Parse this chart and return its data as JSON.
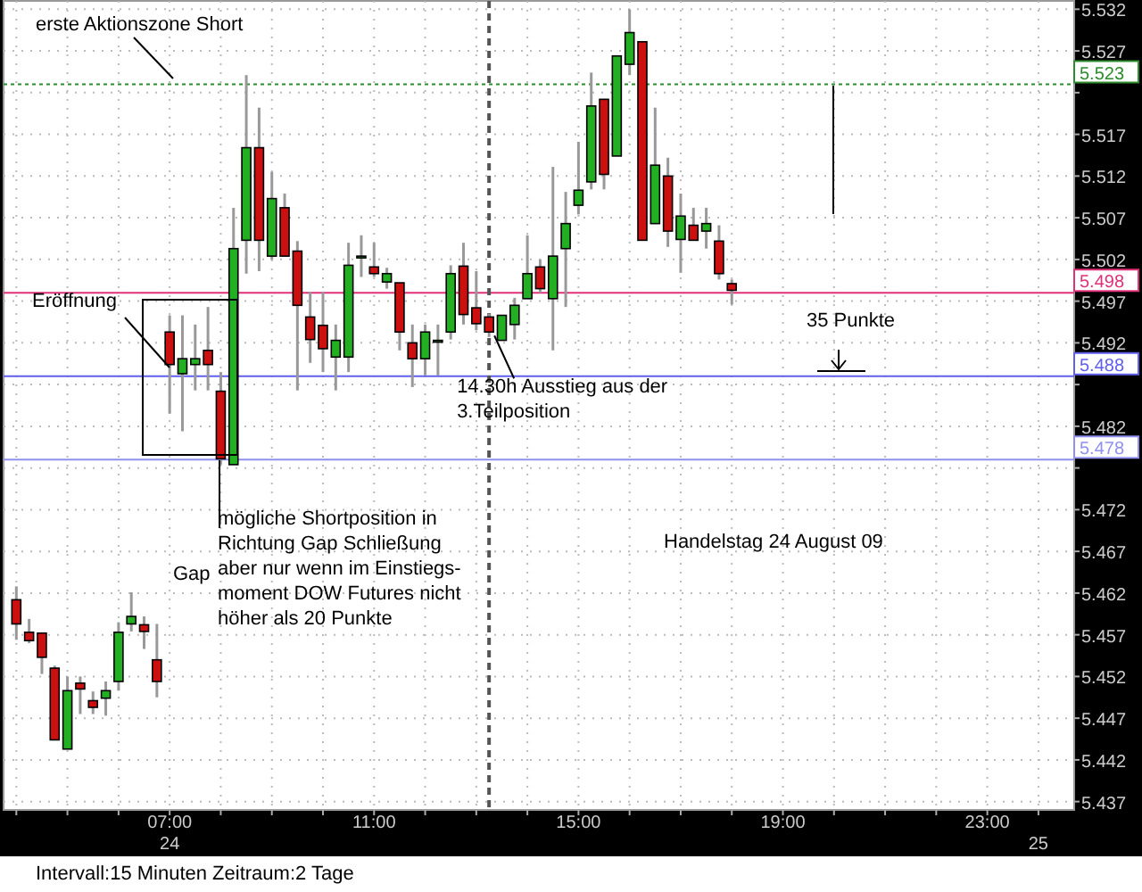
{
  "chart_data": {
    "type": "candlestick",
    "x": [
      4,
      4.25,
      4.5,
      4.75,
      5,
      5.25,
      5.5,
      5.75,
      6,
      6.25,
      6.5,
      6.75,
      7,
      7.25,
      7.5,
      7.75,
      8,
      8.25,
      8.5,
      8.75,
      9,
      9.25,
      9.5,
      9.75,
      10,
      10.25,
      10.5,
      10.75,
      11,
      11.25,
      11.5,
      11.75,
      12,
      12.25,
      12.5,
      12.75,
      13,
      13.25,
      13.5,
      13.75,
      14,
      14.25,
      14.5,
      14.75,
      15,
      15.25,
      15.5,
      15.75,
      16,
      16.25,
      16.5,
      16.75,
      17,
      17.25,
      17.5,
      17.75,
      18
    ],
    "ohlc": [
      [
        5.4612,
        5.4628,
        5.4564,
        5.4583
      ],
      [
        5.4573,
        5.4589,
        5.456,
        5.4563
      ],
      [
        5.4572,
        5.4572,
        5.4523,
        5.4543
      ],
      [
        5.453,
        5.4533,
        5.4444,
        5.4444
      ],
      [
        5.4433,
        5.452,
        5.4433,
        5.4503
      ],
      [
        5.4512,
        5.452,
        5.4475,
        5.4505
      ],
      [
        5.4491,
        5.4502,
        5.4475,
        5.4483
      ],
      [
        5.4494,
        5.4514,
        5.4473,
        5.4503
      ],
      [
        5.4514,
        5.4585,
        5.4503,
        5.4573
      ],
      [
        5.4583,
        5.4621,
        5.4574,
        5.4592
      ],
      [
        5.4582,
        5.4592,
        5.4553,
        5.4574
      ],
      [
        5.454,
        5.4583,
        5.4495,
        5.4514
      ],
      [
        5.4933,
        5.4953,
        5.4835,
        5.4894
      ],
      [
        5.4883,
        5.4953,
        5.4814,
        5.4901
      ],
      [
        5.4894,
        5.4942,
        5.4863,
        5.4901
      ],
      [
        5.4911,
        5.4963,
        5.4863,
        5.4894
      ],
      [
        5.4862,
        5.4885,
        5.4774,
        5.4781
      ],
      [
        5.4774,
        5.5082,
        5.4774,
        5.5033
      ],
      [
        5.5043,
        5.5241,
        5.5003,
        5.5154
      ],
      [
        5.5154,
        5.5202,
        5.5006,
        5.5043
      ],
      [
        5.5024,
        5.5125,
        5.502,
        5.5093
      ],
      [
        5.5082,
        5.5099,
        5.5024,
        5.5024
      ],
      [
        5.503,
        5.5042,
        5.4863,
        5.4965
      ],
      [
        5.4951,
        5.4981,
        5.4896,
        5.4924
      ],
      [
        5.4941,
        5.4981,
        5.4885,
        5.4913
      ],
      [
        5.4903,
        5.4942,
        5.4863,
        5.4923
      ],
      [
        5.4903,
        5.504,
        5.4885,
        5.5013
      ],
      [
        5.5024,
        5.5049,
        5.4999,
        5.5024
      ],
      [
        5.5011,
        5.504,
        5.4999,
        5.5003
      ],
      [
        5.4993,
        5.501,
        5.4985,
        5.5003
      ],
      [
        5.4992,
        5.4992,
        5.4911,
        5.4933
      ],
      [
        5.492,
        5.4942,
        5.4867,
        5.4901
      ],
      [
        5.4901,
        5.4942,
        5.4881,
        5.4933
      ],
      [
        5.4923,
        5.4942,
        5.4881,
        5.4923
      ],
      [
        5.4933,
        5.5013,
        5.4924,
        5.5003
      ],
      [
        5.5012,
        5.504,
        5.4942,
        5.4954
      ],
      [
        5.4962,
        5.5006,
        5.4935,
        5.4943
      ],
      [
        5.4951,
        5.4955,
        5.4927,
        5.4933
      ],
      [
        5.4923,
        5.4953,
        5.4923,
        5.4953
      ],
      [
        5.4942,
        5.4974,
        5.4924,
        5.4965
      ],
      [
        5.4973,
        5.5049,
        5.4973,
        5.5003
      ],
      [
        5.5011,
        5.502,
        5.498,
        5.4985
      ],
      [
        5.4973,
        5.5131,
        5.4911,
        5.5024
      ],
      [
        5.5033,
        5.5101,
        5.4963,
        5.5063
      ],
      [
        5.5085,
        5.5161,
        5.5074,
        5.5103
      ],
      [
        5.5113,
        5.5244,
        5.5104,
        5.5204
      ],
      [
        5.5212,
        5.5212,
        5.5104,
        5.5122
      ],
      [
        5.5144,
        5.5264,
        5.5144,
        5.5264
      ],
      [
        5.5254,
        5.532,
        5.5241,
        5.5292
      ],
      [
        5.5281,
        5.5281,
        5.5043,
        5.5043
      ],
      [
        5.5063,
        5.5202,
        5.5063,
        5.5133
      ],
      [
        5.512,
        5.5142,
        5.5035,
        5.5054
      ],
      [
        5.5044,
        5.5099,
        5.5004,
        5.5072
      ],
      [
        5.5061,
        5.5082,
        5.5043,
        5.5043
      ],
      [
        5.5054,
        5.5082,
        5.5033,
        5.5063
      ],
      [
        5.5042,
        5.5061,
        5.4996,
        5.5003
      ],
      [
        5.4991,
        5.4996,
        5.4966,
        5.4983
      ]
    ],
    "colors": [
      "#cc1010",
      "#cc1010",
      "#cc1010",
      "#cc1010",
      "#22b022",
      "#cc1010",
      "#cc1010",
      "#22b022",
      "#22b022",
      "#22b022",
      "#cc1010",
      "#cc1010",
      "#cc1010",
      "#22b022",
      "#22b022",
      "#cc1010",
      "#cc1010",
      "#22b022",
      "#22b022",
      "#cc1010",
      "#22b022",
      "#cc1010",
      "#cc1010",
      "#cc1010",
      "#cc1010",
      "#22b022",
      "#22b022",
      "#22b022",
      "#cc1010",
      "#22b022",
      "#cc1010",
      "#cc1010",
      "#22b022",
      "#22b022",
      "#22b022",
      "#cc1010",
      "#cc1010",
      "#cc1010",
      "#22b022",
      "#22b022",
      "#22b022",
      "#cc1010",
      "#22b022",
      "#22b022",
      "#22b022",
      "#22b022",
      "#cc1010",
      "#22b022",
      "#22b022",
      "#cc1010",
      "#22b022",
      "#cc1010",
      "#22b022",
      "#cc1010",
      "#22b022",
      "#cc1010",
      "#cc1010"
    ],
    "xlim": [
      3.75,
      24.7
    ],
    "xticks": [
      {
        "value": 4,
        "label": null
      },
      {
        "value": 5,
        "label": null
      },
      {
        "value": 6,
        "label": null
      },
      {
        "value": 7,
        "label": "07:00"
      },
      {
        "value": 8,
        "label": null
      },
      {
        "value": 9,
        "label": null
      },
      {
        "value": 10,
        "label": null
      },
      {
        "value": 11,
        "label": "11:00"
      },
      {
        "value": 12,
        "label": null
      },
      {
        "value": 13,
        "label": null
      },
      {
        "value": 14,
        "label": null
      },
      {
        "value": 15,
        "label": "15:00"
      },
      {
        "value": 16,
        "label": null
      },
      {
        "value": 17,
        "label": null
      },
      {
        "value": 18,
        "label": null
      },
      {
        "value": 19,
        "label": "19:00"
      },
      {
        "value": 20,
        "label": null
      },
      {
        "value": 21,
        "label": null
      },
      {
        "value": 22,
        "label": null
      },
      {
        "value": 23,
        "label": "23:00"
      },
      {
        "value": 24,
        "label": null
      }
    ],
    "ylim": [
      5.436,
      5.533
    ],
    "yticks": [
      5.437,
      5.442,
      5.447,
      5.452,
      5.457,
      5.462,
      5.467,
      5.472,
      {
        "value": 5.477,
        "label": null
      },
      5.482,
      {
        "value": 5.487,
        "label": null
      },
      5.492,
      5.497,
      5.502,
      5.507,
      5.512,
      5.517,
      {
        "value": 5.522,
        "label": null
      },
      5.527,
      5.532
    ],
    "grid": true,
    "ref_lines": [
      {
        "axis": "y",
        "value": 5.523,
        "label": "5.523",
        "color": "#2e8b2e",
        "line_style": "dotted"
      },
      {
        "axis": "y",
        "value": 5.498,
        "label": "5.498",
        "color": "#e0307a",
        "line_style": "solid"
      },
      {
        "axis": "y",
        "value": 5.488,
        "label": "5.488",
        "color": "#6060ee",
        "line_style": "solid"
      },
      {
        "axis": "y",
        "value": 5.478,
        "label": "5.478",
        "color": "#9090f0",
        "line_style": "solid"
      },
      {
        "axis": "x",
        "value": 13.25,
        "color": "#555555",
        "line_style": "dashed"
      }
    ],
    "annotations": [
      "erste Aktionszone Short",
      "Eröffnung",
      "Gap",
      "mögliche Shortposition in\nRichtung Gap Schließung\naber nur wenn im Einstiegs-\nmoment DOW Futures nicht\nhöher als 20 Punkte",
      {
        "text": "14.30h Ausstieg aus der\n3.Teilposition",
        "x": 13.25,
        "y": 5.4933
      },
      "Handelstag 24 August 09",
      "35 Punkte",
      "Intervall:15 Minuten    Zeitraum:2 Tage"
    ],
    "x2lim": [
      24.15625,
      25.02917
    ],
    "x2ticks": [
      {
        "value": 24.2917,
        "label": "24"
      },
      25
    ]
  }
}
